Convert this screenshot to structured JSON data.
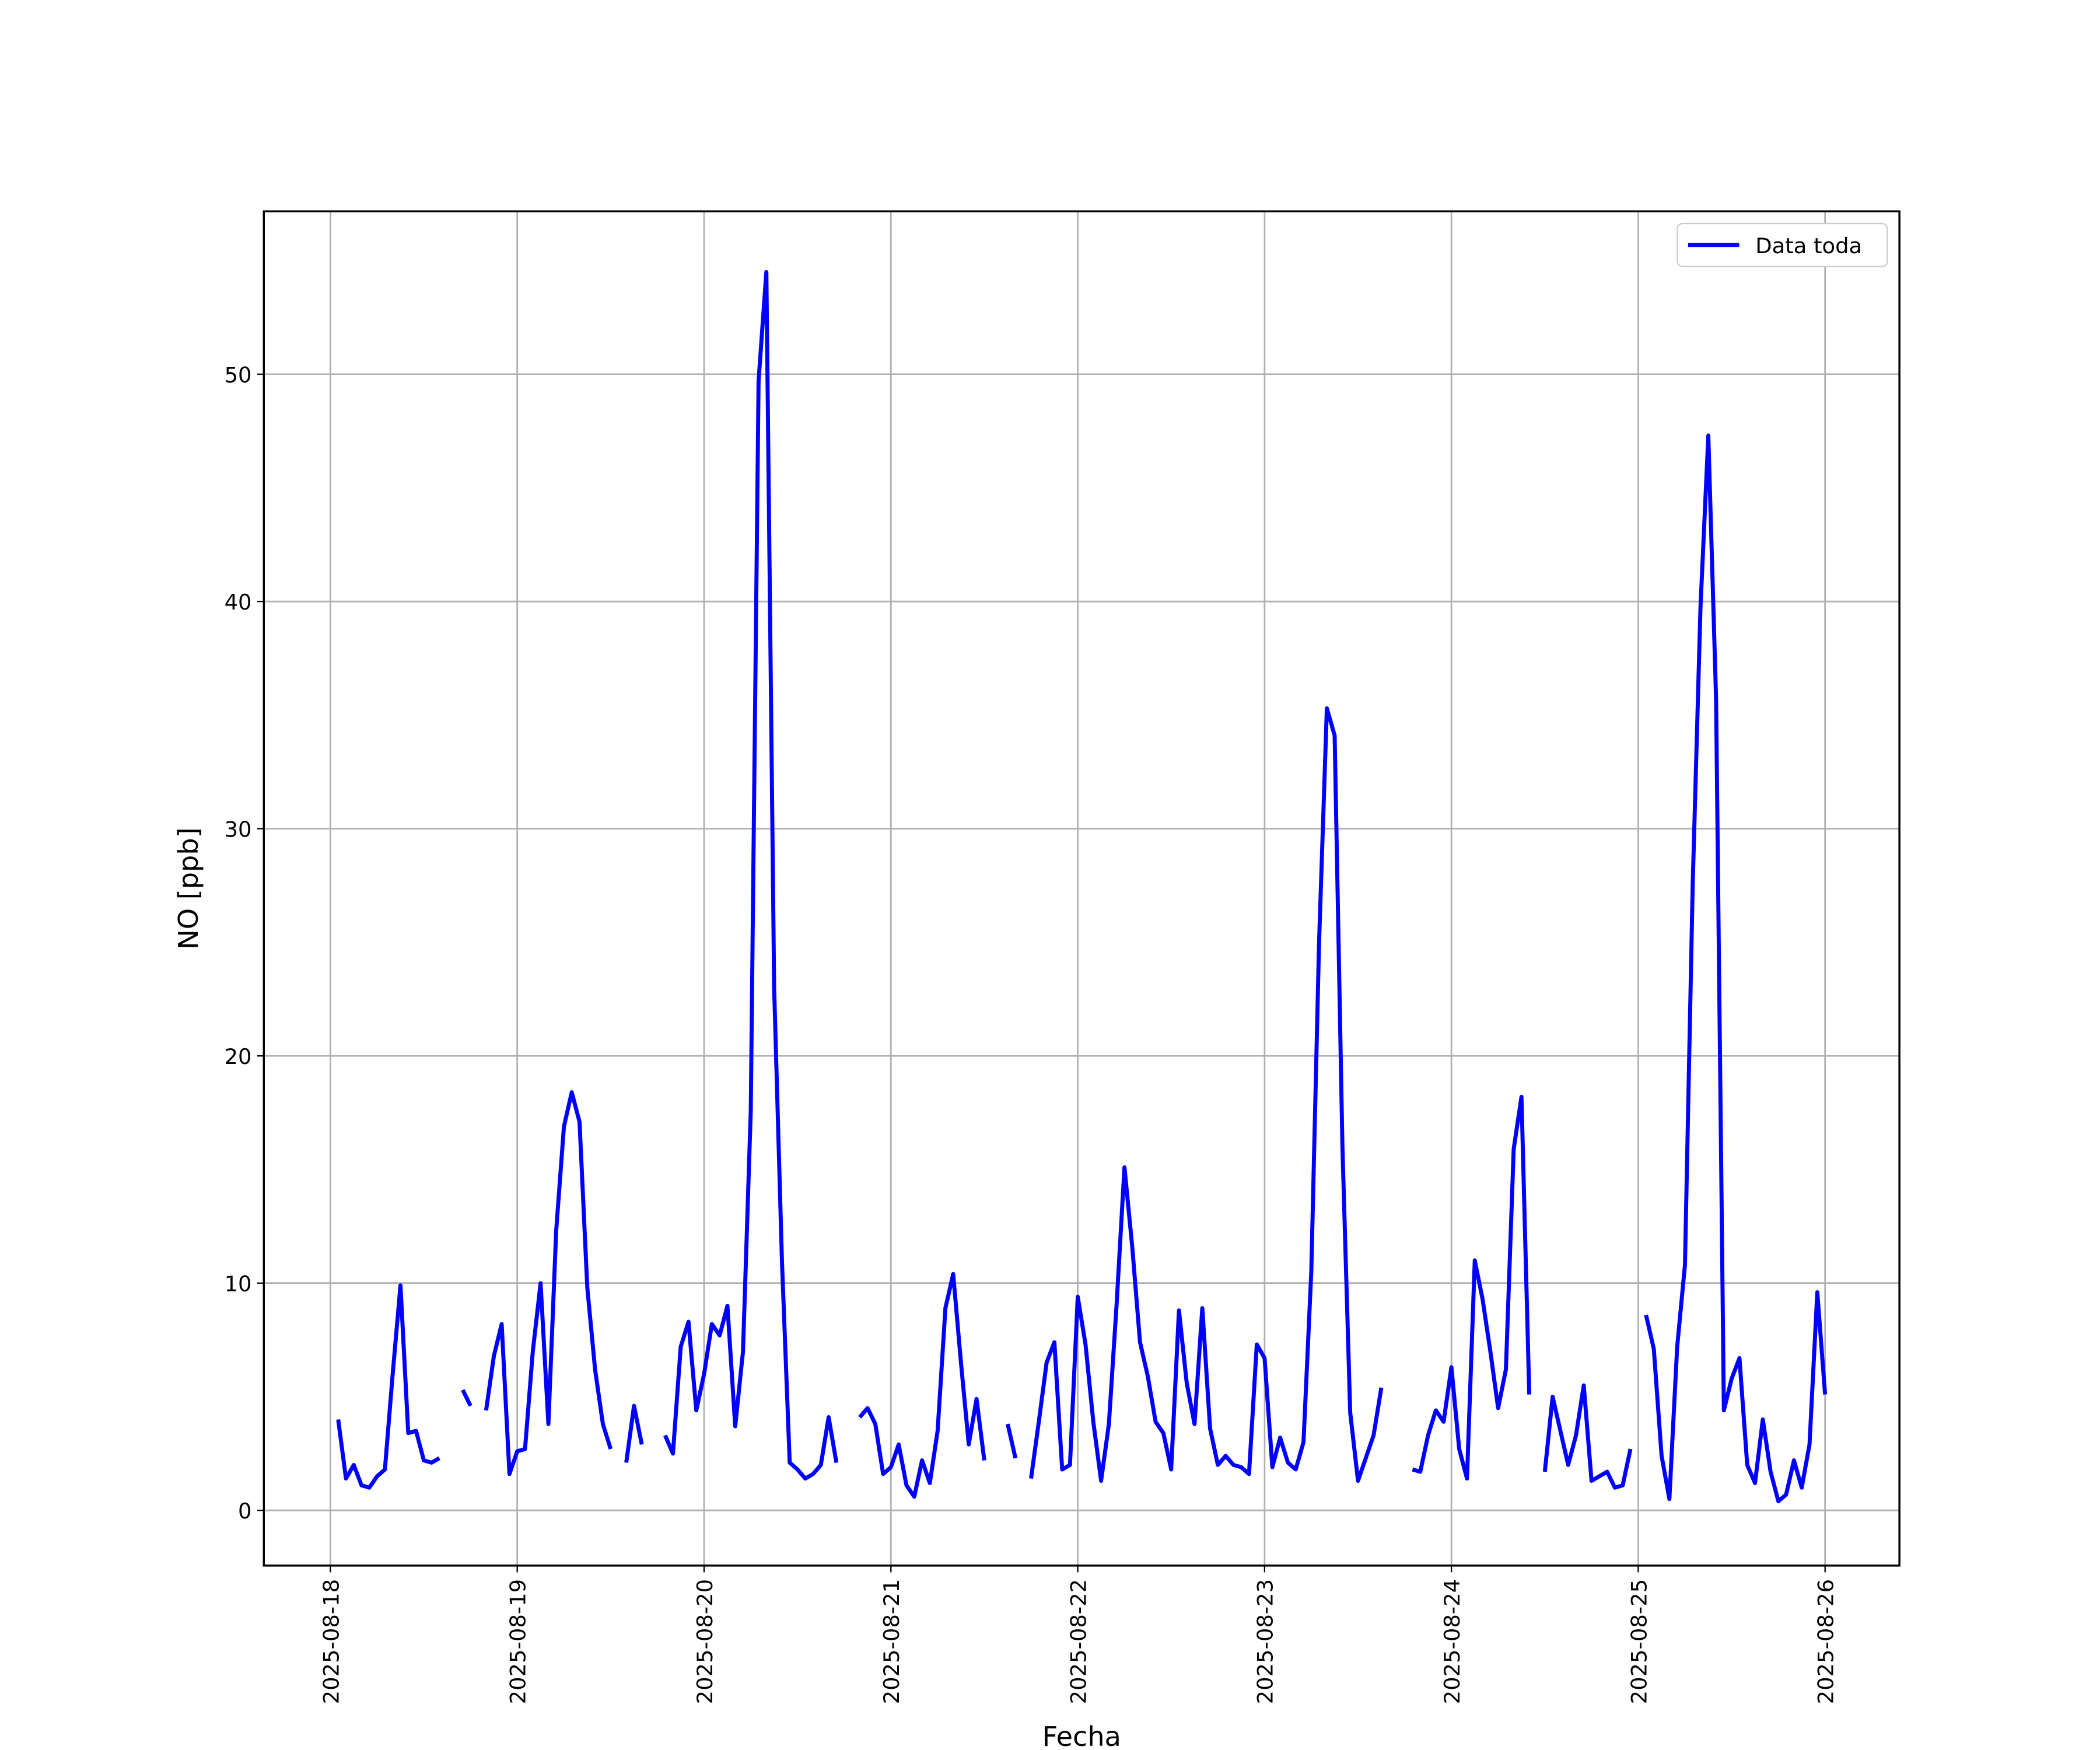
{
  "chart_data": {
    "type": "line",
    "xlabel": "Fecha",
    "ylabel": "NO [ppb]",
    "x": [
      "2025-08-18 01:00",
      "2025-08-18 02:00",
      "2025-08-18 03:00",
      "2025-08-18 04:00",
      "2025-08-18 05:00",
      "2025-08-18 06:00",
      "2025-08-18 07:00",
      "2025-08-18 08:00",
      "2025-08-18 09:00",
      "2025-08-18 10:00",
      "2025-08-18 11:00",
      "2025-08-18 12:00",
      "2025-08-18 13:00",
      "2025-08-18 14:00",
      "2025-08-18 15:00",
      "2025-08-18 16:00",
      "2025-08-18 17:00",
      "2025-08-18 18:00",
      "2025-08-18 19:00",
      "2025-08-18 20:00",
      "2025-08-18 21:00",
      "2025-08-18 22:00",
      "2025-08-18 23:00",
      "2025-08-19 00:00",
      "2025-08-19 01:00",
      "2025-08-19 02:00",
      "2025-08-19 03:00",
      "2025-08-19 04:00",
      "2025-08-19 05:00",
      "2025-08-19 06:00",
      "2025-08-19 07:00",
      "2025-08-19 08:00",
      "2025-08-19 09:00",
      "2025-08-19 10:00",
      "2025-08-19 11:00",
      "2025-08-19 12:00",
      "2025-08-19 13:00",
      "2025-08-19 14:00",
      "2025-08-19 15:00",
      "2025-08-19 16:00",
      "2025-08-19 17:00",
      "2025-08-19 18:00",
      "2025-08-19 19:00",
      "2025-08-19 20:00",
      "2025-08-19 21:00",
      "2025-08-19 22:00",
      "2025-08-19 23:00",
      "2025-08-20 00:00",
      "2025-08-20 01:00",
      "2025-08-20 02:00",
      "2025-08-20 03:00",
      "2025-08-20 04:00",
      "2025-08-20 05:00",
      "2025-08-20 06:00",
      "2025-08-20 07:00",
      "2025-08-20 08:00",
      "2025-08-20 09:00",
      "2025-08-20 10:00",
      "2025-08-20 11:00",
      "2025-08-20 12:00",
      "2025-08-20 13:00",
      "2025-08-20 14:00",
      "2025-08-20 15:00",
      "2025-08-20 16:00",
      "2025-08-20 17:00",
      "2025-08-20 18:00",
      "2025-08-20 19:00",
      "2025-08-20 20:00",
      "2025-08-20 21:00",
      "2025-08-20 22:00",
      "2025-08-20 23:00",
      "2025-08-21 00:00",
      "2025-08-21 01:00",
      "2025-08-21 02:00",
      "2025-08-21 03:00",
      "2025-08-21 04:00",
      "2025-08-21 05:00",
      "2025-08-21 06:00",
      "2025-08-21 07:00",
      "2025-08-21 08:00",
      "2025-08-21 09:00",
      "2025-08-21 10:00",
      "2025-08-21 11:00",
      "2025-08-21 12:00",
      "2025-08-21 13:00",
      "2025-08-21 14:00",
      "2025-08-21 15:00",
      "2025-08-21 16:00",
      "2025-08-21 17:00",
      "2025-08-21 18:00",
      "2025-08-21 19:00",
      "2025-08-21 20:00",
      "2025-08-21 21:00",
      "2025-08-21 22:00",
      "2025-08-21 23:00",
      "2025-08-22 00:00",
      "2025-08-22 01:00",
      "2025-08-22 02:00",
      "2025-08-22 03:00",
      "2025-08-22 04:00",
      "2025-08-22 05:00",
      "2025-08-22 06:00",
      "2025-08-22 07:00",
      "2025-08-22 08:00",
      "2025-08-22 09:00",
      "2025-08-22 10:00",
      "2025-08-22 11:00",
      "2025-08-22 12:00",
      "2025-08-22 13:00",
      "2025-08-22 14:00",
      "2025-08-22 15:00",
      "2025-08-22 16:00",
      "2025-08-22 17:00",
      "2025-08-22 18:00",
      "2025-08-22 19:00",
      "2025-08-22 20:00",
      "2025-08-22 21:00",
      "2025-08-22 22:00",
      "2025-08-22 23:00",
      "2025-08-23 00:00",
      "2025-08-23 01:00",
      "2025-08-23 02:00",
      "2025-08-23 03:00",
      "2025-08-23 04:00",
      "2025-08-23 05:00",
      "2025-08-23 06:00",
      "2025-08-23 07:00",
      "2025-08-23 08:00",
      "2025-08-23 09:00",
      "2025-08-23 10:00",
      "2025-08-23 11:00",
      "2025-08-23 12:00",
      "2025-08-23 13:00",
      "2025-08-23 14:00",
      "2025-08-23 15:00",
      "2025-08-23 16:00",
      "2025-08-23 17:00",
      "2025-08-23 18:00",
      "2025-08-23 19:00",
      "2025-08-23 20:00",
      "2025-08-23 21:00",
      "2025-08-23 22:00",
      "2025-08-23 23:00",
      "2025-08-24 00:00",
      "2025-08-24 01:00",
      "2025-08-24 02:00",
      "2025-08-24 03:00",
      "2025-08-24 04:00",
      "2025-08-24 05:00",
      "2025-08-24 06:00",
      "2025-08-24 07:00",
      "2025-08-24 08:00",
      "2025-08-24 09:00",
      "2025-08-24 10:00",
      "2025-08-24 11:00",
      "2025-08-24 12:00",
      "2025-08-24 13:00",
      "2025-08-24 14:00",
      "2025-08-24 15:00",
      "2025-08-24 16:00",
      "2025-08-24 17:00",
      "2025-08-24 18:00",
      "2025-08-24 19:00",
      "2025-08-24 20:00",
      "2025-08-24 21:00",
      "2025-08-24 22:00",
      "2025-08-24 23:00",
      "2025-08-25 00:00",
      "2025-08-25 01:00",
      "2025-08-25 02:00",
      "2025-08-25 03:00",
      "2025-08-25 04:00",
      "2025-08-25 05:00",
      "2025-08-25 06:00",
      "2025-08-25 07:00",
      "2025-08-25 08:00",
      "2025-08-25 09:00",
      "2025-08-25 10:00",
      "2025-08-25 11:00",
      "2025-08-25 12:00",
      "2025-08-25 13:00",
      "2025-08-25 14:00",
      "2025-08-25 15:00",
      "2025-08-25 16:00",
      "2025-08-25 17:00",
      "2025-08-25 18:00",
      "2025-08-25 19:00",
      "2025-08-25 20:00",
      "2025-08-25 21:00",
      "2025-08-25 22:00",
      "2025-08-25 23:00",
      "2025-08-26 00:00"
    ],
    "series": [
      {
        "name": "Data toda",
        "color": "#0000ff",
        "values": [
          4.0,
          1.4,
          2.0,
          1.1,
          1.0,
          1.5,
          1.8,
          6.0,
          9.9,
          3.4,
          3.5,
          2.2,
          2.1,
          2.3,
          null,
          null,
          5.3,
          4.6,
          null,
          4.4,
          6.8,
          8.2,
          1.6,
          2.6,
          2.7,
          7.0,
          10.0,
          3.8,
          12.3,
          16.9,
          18.4,
          17.1,
          9.8,
          6.2,
          3.8,
          2.7,
          null,
          2.1,
          4.6,
          2.9,
          null,
          null,
          3.3,
          2.5,
          7.2,
          8.3,
          4.4,
          6.0,
          8.2,
          7.7,
          9.0,
          3.7,
          7.0,
          17.6,
          49.7,
          54.5,
          23.0,
          11.0,
          2.1,
          1.8,
          1.4,
          1.6,
          2.0,
          4.1,
          2.1,
          null,
          null,
          4.1,
          4.5,
          3.8,
          1.6,
          1.9,
          2.9,
          1.1,
          0.6,
          2.2,
          1.2,
          3.5,
          8.9,
          10.4,
          6.5,
          2.9,
          4.9,
          2.2,
          null,
          null,
          3.8,
          2.3,
          null,
          1.4,
          3.9,
          6.5,
          7.4,
          1.8,
          2.0,
          9.4,
          7.3,
          3.9,
          1.3,
          3.8,
          9.1,
          15.1,
          11.6,
          7.4,
          5.9,
          3.9,
          3.4,
          1.8,
          8.8,
          5.6,
          3.8,
          8.9,
          3.6,
          2.0,
          2.4,
          2.0,
          1.9,
          1.6,
          7.3,
          6.7,
          1.9,
          3.2,
          2.1,
          1.8,
          3.0,
          10.5,
          25.0,
          35.3,
          34.1,
          16.0,
          4.3,
          1.3,
          2.3,
          3.3,
          5.4,
          null,
          null,
          null,
          1.8,
          1.7,
          3.3,
          4.4,
          3.9,
          6.3,
          2.7,
          1.4,
          11.0,
          9.3,
          7.0,
          4.5,
          6.2,
          15.9,
          18.2,
          5.1,
          null,
          1.7,
          5.0,
          3.5,
          2.0,
          3.3,
          5.5,
          1.3,
          1.5,
          1.7,
          1.0,
          1.1,
          2.7,
          null,
          8.6,
          7.1,
          2.4,
          0.5,
          7.2,
          10.8,
          27.6,
          39.8,
          47.3,
          35.7,
          4.4,
          5.8,
          6.7,
          2.0,
          1.2,
          4.0,
          1.7,
          0.4,
          0.7,
          2.2,
          1.0,
          2.9,
          9.6,
          5.1
        ]
      }
    ],
    "xlim": [
      "2025-08-17 15:27",
      "2025-08-26 09:33"
    ],
    "xticks": [
      "2025-08-18",
      "2025-08-19",
      "2025-08-20",
      "2025-08-21",
      "2025-08-22",
      "2025-08-23",
      "2025-08-24",
      "2025-08-25",
      "2025-08-26"
    ],
    "ylim": [
      -2.43,
      57.17
    ],
    "yticks": [
      0,
      10,
      20,
      30,
      40,
      50
    ],
    "grid": true,
    "legend": "upper right"
  }
}
